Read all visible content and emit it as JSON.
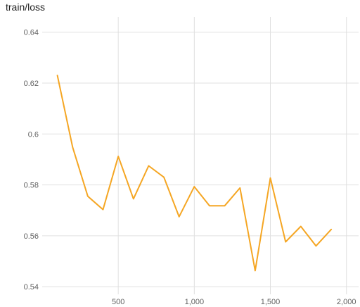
{
  "chart_data": {
    "type": "line",
    "title": "train/loss",
    "xlabel": "",
    "ylabel": "",
    "xlim": [
      0,
      2080
    ],
    "ylim": [
      0.537,
      0.646
    ],
    "x_ticks": [
      500,
      1000,
      1500,
      2000
    ],
    "x_tick_labels": [
      "500",
      "1,000",
      "1,500",
      "2,000"
    ],
    "y_ticks": [
      0.54,
      0.56,
      0.58,
      0.6,
      0.62,
      0.64
    ],
    "y_tick_labels": [
      "0.54",
      "0.56",
      "0.58",
      "0.6",
      "0.62",
      "0.64"
    ],
    "grid": true,
    "legend": "none",
    "series": [
      {
        "color": "#f5a623",
        "x": [
          100,
          200,
          300,
          400,
          500,
          600,
          700,
          800,
          900,
          1000,
          1100,
          1200,
          1300,
          1400,
          1500,
          1600,
          1700,
          1800,
          1900
        ],
        "y": [
          0.623,
          0.5948,
          0.5755,
          0.5703,
          0.5912,
          0.5745,
          0.5875,
          0.583,
          0.5675,
          0.5793,
          0.5718,
          0.5718,
          0.5788,
          0.5463,
          0.5827,
          0.5576,
          0.5637,
          0.556,
          0.5625
        ]
      }
    ]
  }
}
